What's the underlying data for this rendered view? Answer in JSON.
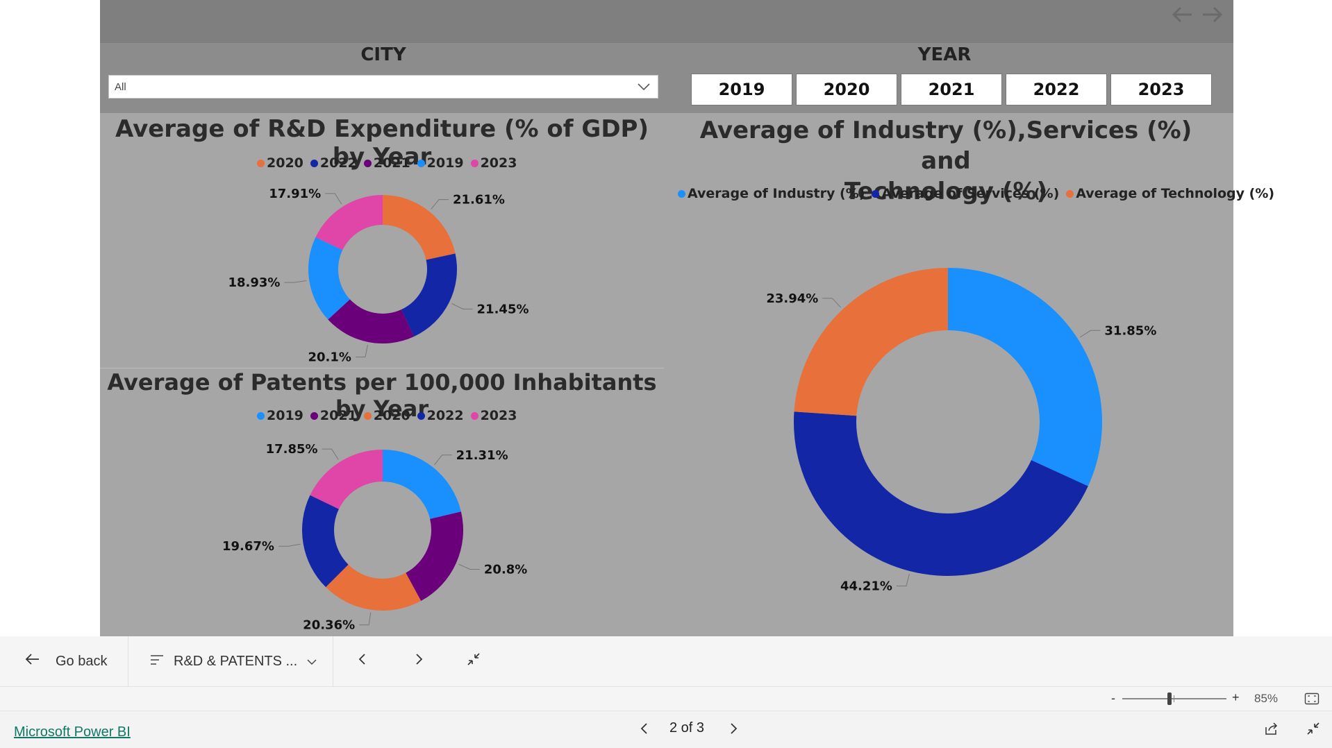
{
  "slicers": {
    "city": {
      "title": "CITY",
      "selected": "All"
    },
    "year": {
      "title": "YEAR",
      "options": [
        "2019",
        "2020",
        "2021",
        "2022",
        "2023"
      ]
    }
  },
  "visuals": {
    "rd_expenditure": {
      "title": "Average of R&D Expenditure (% of GDP) by Year",
      "legend": [
        {
          "label": "2020",
          "color": "#e8703a"
        },
        {
          "label": "2022",
          "color": "#1226a6"
        },
        {
          "label": "2021",
          "color": "#6b007b"
        },
        {
          "label": "2019",
          "color": "#1a90ff"
        },
        {
          "label": "2023",
          "color": "#e045a8"
        }
      ]
    },
    "patents": {
      "title": "Average of Patents per 100,000 Inhabitants by Year",
      "legend": [
        {
          "label": "2019",
          "color": "#1a90ff"
        },
        {
          "label": "2021",
          "color": "#6b007b"
        },
        {
          "label": "2020",
          "color": "#e8703a"
        },
        {
          "label": "2022",
          "color": "#1226a6"
        },
        {
          "label": "2023",
          "color": "#e045a8"
        }
      ]
    },
    "sectors": {
      "title_line1": "Average of Industry (%),Services (%) and",
      "title_line2": "Technology (%)",
      "legend": [
        {
          "label": "Average of Industry (%)",
          "color": "#1a90ff"
        },
        {
          "label": "Average of Services (%)",
          "color": "#1226a6"
        },
        {
          "label": "Average of Technology (%)",
          "color": "#e8703a"
        }
      ]
    }
  },
  "chart_data": [
    {
      "type": "pie",
      "title": "Average of R&D Expenditure (% of GDP) by Year",
      "donut": true,
      "slices": [
        {
          "label": "2020",
          "value": 21.61,
          "display": "21.61%",
          "color": "#e8703a"
        },
        {
          "label": "2022",
          "value": 21.45,
          "display": "21.45%",
          "color": "#1226a6"
        },
        {
          "label": "2021",
          "value": 20.1,
          "display": "20.1%",
          "color": "#6b007b"
        },
        {
          "label": "2019",
          "value": 18.93,
          "display": "18.93%",
          "color": "#1a90ff"
        },
        {
          "label": "2023",
          "value": 17.91,
          "display": "17.91%",
          "color": "#e045a8"
        }
      ]
    },
    {
      "type": "pie",
      "title": "Average of Patents per 100,000 Inhabitants by Year",
      "donut": true,
      "slices": [
        {
          "label": "2019",
          "value": 21.31,
          "display": "21.31%",
          "color": "#1a90ff"
        },
        {
          "label": "2021",
          "value": 20.8,
          "display": "20.8%",
          "color": "#6b007b"
        },
        {
          "label": "2020",
          "value": 20.36,
          "display": "20.36%",
          "color": "#e8703a"
        },
        {
          "label": "2022",
          "value": 19.67,
          "display": "19.67%",
          "color": "#1226a6"
        },
        {
          "label": "2023",
          "value": 17.85,
          "display": "17.85%",
          "color": "#e045a8"
        }
      ]
    },
    {
      "type": "pie",
      "title": "Average of Industry (%),Services (%) and Technology (%)",
      "donut": true,
      "slices": [
        {
          "label": "Average of Industry (%)",
          "value": 31.85,
          "display": "31.85%",
          "color": "#1a90ff"
        },
        {
          "label": "Average of Services (%)",
          "value": 44.21,
          "display": "44.21%",
          "color": "#1226a6"
        },
        {
          "label": "Average of Technology (%)",
          "value": 23.94,
          "display": "23.94%",
          "color": "#e8703a"
        }
      ]
    }
  ],
  "toolbar": {
    "go_back": "Go back",
    "page_name": "R&D & PATENTS ...",
    "zoom_minus": "-",
    "zoom_plus": "+",
    "zoom_level": "85%",
    "zoom_fraction": 0.45
  },
  "footer": {
    "brand": "Microsoft Power BI",
    "page_indicator": "2 of 3"
  }
}
